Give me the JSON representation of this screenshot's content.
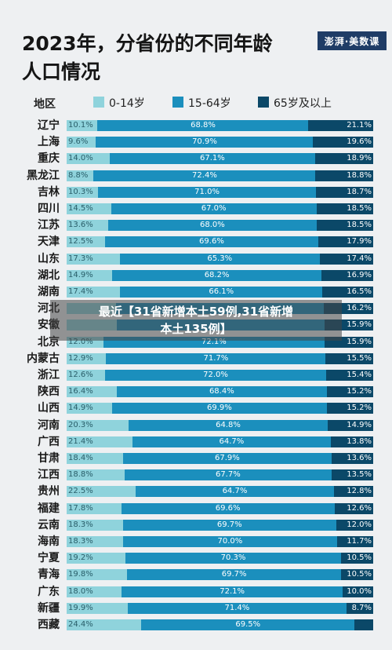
{
  "header": {
    "title_line1": "2023年，分省份的不同年龄",
    "title_line2": "人口情况",
    "logo": "澎湃·美数课"
  },
  "legend": {
    "region_header": "地区",
    "items": [
      {
        "label": "0-14岁",
        "color": "#8fd3dc"
      },
      {
        "label": "15-64岁",
        "color": "#1b8fbd"
      },
      {
        "label": "65岁及以上",
        "color": "#0b4868"
      }
    ]
  },
  "overlay": {
    "line1": "最近【31省新增本土59例,31省新增",
    "line2": "本土135例】"
  },
  "chart_data": {
    "type": "bar",
    "stacked": true,
    "orientation": "horizontal",
    "categories": [
      "辽宁",
      "上海",
      "重庆",
      "黑龙江",
      "吉林",
      "四川",
      "江苏",
      "天津",
      "山东",
      "湖北",
      "湖南",
      "河北",
      "安徽",
      "北京",
      "内蒙古",
      "浙江",
      "陕西",
      "山西",
      "河南",
      "广西",
      "甘肃",
      "江西",
      "贵州",
      "福建",
      "云南",
      "海南",
      "宁夏",
      "青海",
      "广东",
      "新疆",
      "西藏"
    ],
    "series": [
      {
        "name": "0-14岁",
        "values": [
          "10.1%",
          "9.6%",
          "14.0%",
          "8.8%",
          "10.3%",
          "14.5%",
          "13.6%",
          "12.5%",
          "17.3%",
          "14.9%",
          "17.4%",
          "",
          "",
          "12.0%",
          "12.9%",
          "12.6%",
          "16.4%",
          "14.9%",
          "20.3%",
          "21.4%",
          "18.4%",
          "18.8%",
          "22.5%",
          "17.8%",
          "18.3%",
          "18.3%",
          "19.2%",
          "19.8%",
          "18.0%",
          "19.9%",
          "24.4%"
        ]
      },
      {
        "name": "15-64岁",
        "values": [
          "68.8%",
          "70.9%",
          "67.1%",
          "72.4%",
          "71.0%",
          "67.0%",
          "68.0%",
          "69.6%",
          "65.3%",
          "68.2%",
          "66.1%",
          "",
          "",
          "72.1%",
          "71.7%",
          "72.0%",
          "68.4%",
          "69.9%",
          "64.8%",
          "64.7%",
          "67.9%",
          "67.7%",
          "64.7%",
          "69.6%",
          "69.7%",
          "70.0%",
          "70.3%",
          "69.7%",
          "72.1%",
          "71.4%",
          "69.5%"
        ]
      },
      {
        "name": "65岁及以上",
        "values": [
          "21.1%",
          "19.6%",
          "18.9%",
          "18.8%",
          "18.7%",
          "18.5%",
          "18.5%",
          "17.9%",
          "17.4%",
          "16.9%",
          "16.5%",
          "16.2%",
          "15.9%",
          "15.9%",
          "15.5%",
          "15.4%",
          "15.2%",
          "15.2%",
          "14.9%",
          "13.8%",
          "13.6%",
          "13.5%",
          "12.8%",
          "12.6%",
          "12.0%",
          "11.7%",
          "10.5%",
          "10.5%",
          "10.0%",
          "8.7%",
          ""
        ]
      }
    ],
    "approx_values": {
      "0-14": [
        10.1,
        9.6,
        14.0,
        8.8,
        10.3,
        14.5,
        13.6,
        12.5,
        17.3,
        14.9,
        17.4,
        16.0,
        16.4,
        12.0,
        12.9,
        12.6,
        16.4,
        14.9,
        20.3,
        21.4,
        18.4,
        18.8,
        22.5,
        17.8,
        18.3,
        18.3,
        19.2,
        19.8,
        18.0,
        19.9,
        24.4
      ],
      "15-64": [
        68.8,
        70.9,
        67.1,
        72.4,
        71.0,
        67.0,
        68.0,
        69.6,
        65.3,
        68.2,
        66.1,
        67.8,
        67.7,
        72.1,
        71.7,
        72.0,
        68.4,
        69.9,
        64.8,
        64.7,
        67.9,
        67.7,
        64.7,
        69.6,
        69.7,
        70.0,
        70.3,
        69.7,
        72.1,
        71.4,
        69.5
      ],
      "65+": [
        21.1,
        19.6,
        18.9,
        18.8,
        18.7,
        18.5,
        18.5,
        17.9,
        17.4,
        16.9,
        16.5,
        16.2,
        15.9,
        15.9,
        15.5,
        15.4,
        15.2,
        15.2,
        14.9,
        13.8,
        13.6,
        13.5,
        12.8,
        12.6,
        12.0,
        11.7,
        10.5,
        10.5,
        10.0,
        8.7,
        6.1
      ]
    },
    "xlim": [
      0,
      100
    ]
  }
}
